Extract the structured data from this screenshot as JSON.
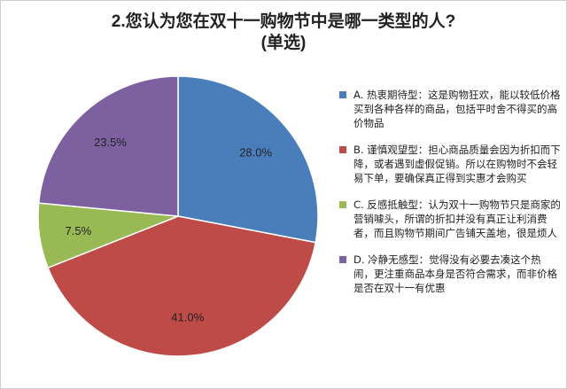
{
  "chart_data": {
    "type": "pie",
    "title": "2.您认为您在双十一购物节中是哪一类型的人?",
    "subtitle": "(单选)",
    "categories": [
      "A. 热衷期待型：这是购物狂欢，能以较低价格买到各种各样的商品，包括平时舍不得买的高价物品",
      "B. 谨慎观望型：担心商品质量会因为折扣而下降，或者遇到虚假促销。所以在购物时不会轻易下单，要确保真正得到实惠才会购买",
      "C. 反感抵触型：认为双十一购物节只是商家的营销噱头，所谓的折扣并没有真正让利消费者，而且购物节期间广告铺天盖地，很是烦人",
      "D. 冷静无感型：觉得没有必要去凑这个热闹，更注重商品本身是否符合需求，而非价格是否在双十一有优惠"
    ],
    "values": [
      28.0,
      41.0,
      7.5,
      23.5
    ],
    "value_labels": [
      "28.0%",
      "41.0%",
      "7.5%",
      "23.5%"
    ],
    "colors": [
      "#4a7ebb",
      "#be4b48",
      "#98b954",
      "#7d60a0"
    ],
    "start_angle": "12 o'clock, clockwise",
    "legend_position": "right"
  }
}
